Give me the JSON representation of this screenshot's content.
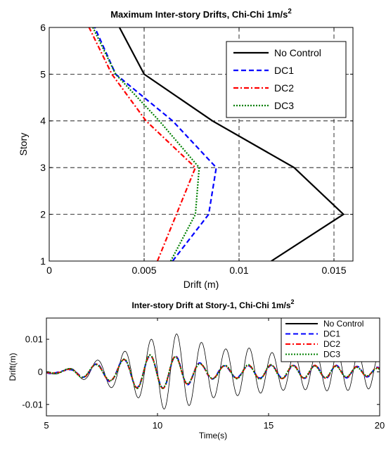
{
  "chart_data": [
    {
      "type": "line",
      "title": "Maximum Inter-story Drifts, Chi-Chi 1m/s",
      "title_sup": "2",
      "xlabel": "Drift (m)",
      "ylabel": "Story",
      "xlim": [
        0,
        0.016
      ],
      "ylim": [
        1,
        6
      ],
      "xticks": [
        0,
        0.005,
        0.01,
        0.015
      ],
      "xtick_labels": [
        "0",
        "0.005",
        "0.01",
        "0.015"
      ],
      "yticks": [
        1,
        2,
        3,
        4,
        5,
        6
      ],
      "ytick_labels": [
        "1",
        "2",
        "3",
        "4",
        "5",
        "6"
      ],
      "grid": true,
      "legend_position": "top-right",
      "series": [
        {
          "name": "No Control",
          "color": "#000000",
          "dash": "solid",
          "points": [
            [
              0.0117,
              1
            ],
            [
              0.0155,
              2
            ],
            [
              0.0129,
              3
            ],
            [
              0.0086,
              4
            ],
            [
              0.005,
              5
            ],
            [
              0.0037,
              6
            ]
          ]
        },
        {
          "name": "DC1",
          "color": "#0000ff",
          "dash": "dashed",
          "points": [
            [
              0.0065,
              1
            ],
            [
              0.0084,
              2
            ],
            [
              0.0088,
              3
            ],
            [
              0.0065,
              4
            ],
            [
              0.0035,
              5
            ],
            [
              0.0024,
              6
            ]
          ]
        },
        {
          "name": "DC2",
          "color": "#ff0000",
          "dash": "dashdot",
          "points": [
            [
              0.0057,
              1
            ],
            [
              0.0067,
              2
            ],
            [
              0.0077,
              3
            ],
            [
              0.0051,
              4
            ],
            [
              0.0033,
              5
            ],
            [
              0.0021,
              6
            ]
          ]
        },
        {
          "name": "DC3",
          "color": "#008000",
          "dash": "dotted",
          "points": [
            [
              0.0064,
              1
            ],
            [
              0.0077,
              2
            ],
            [
              0.0079,
              3
            ],
            [
              0.0058,
              4
            ],
            [
              0.0035,
              5
            ],
            [
              0.0023,
              6
            ]
          ]
        }
      ]
    },
    {
      "type": "line",
      "title": "Inter-story Drift at Story-1, Chi-Chi 1m/s",
      "title_sup": "2",
      "xlabel": "Time(s)",
      "ylabel": "Drift(m)",
      "xlim": [
        5,
        20
      ],
      "ylim": [
        -0.0135,
        0.0165
      ],
      "xticks": [
        5,
        10,
        15,
        20
      ],
      "xtick_labels": [
        "5",
        "10",
        "15",
        "20"
      ],
      "yticks": [
        0.01,
        0,
        -0.01
      ],
      "ytick_labels": [
        "0.01",
        "0",
        "-0.01"
      ],
      "grid": false,
      "legend_position": "top-right",
      "series": [
        {
          "name": "No Control",
          "color": "#000000",
          "dash": "solid",
          "width": 0.8,
          "envelope": [
            [
              5,
              0.0005
            ],
            [
              6,
              0.001
            ],
            [
              7,
              0.003
            ],
            [
              8,
              0.005
            ],
            [
              9,
              0.0075
            ],
            [
              10,
              0.011
            ],
            [
              10.7,
              0.012
            ],
            [
              12,
              0.009
            ],
            [
              13,
              0.007
            ],
            [
              14,
              0.0075
            ],
            [
              15,
              0.006
            ],
            [
              16,
              0.0055
            ],
            [
              17,
              0.0055
            ],
            [
              18,
              0.006
            ],
            [
              19,
              0.0055
            ],
            [
              20,
              0.005
            ]
          ]
        },
        {
          "name": "DC1",
          "color": "#0000ff",
          "dash": "dashed",
          "width": 2,
          "envelope": [
            [
              5,
              0.0004
            ],
            [
              6,
              0.0008
            ],
            [
              7,
              0.002
            ],
            [
              8,
              0.003
            ],
            [
              9,
              0.005
            ],
            [
              10,
              0.005
            ],
            [
              11,
              0.0045
            ],
            [
              12,
              0.0025
            ],
            [
              13,
              0.002
            ],
            [
              14,
              0.002
            ],
            [
              15,
              0.002
            ],
            [
              16,
              0.0018
            ],
            [
              17,
              0.0018
            ],
            [
              18,
              0.0018
            ],
            [
              19,
              0.0015
            ],
            [
              20,
              0.0012
            ]
          ]
        },
        {
          "name": "DC2",
          "color": "#ff0000",
          "dash": "dashdot",
          "width": 2,
          "envelope": [
            [
              5,
              0.0004
            ],
            [
              6,
              0.0008
            ],
            [
              7,
              0.002
            ],
            [
              8,
              0.003
            ],
            [
              9,
              0.005
            ],
            [
              10,
              0.005
            ],
            [
              11,
              0.0045
            ],
            [
              12,
              0.0025
            ],
            [
              13,
              0.002
            ],
            [
              14,
              0.002
            ],
            [
              15,
              0.002
            ],
            [
              16,
              0.0018
            ],
            [
              17,
              0.0018
            ],
            [
              18,
              0.0018
            ],
            [
              19,
              0.0015
            ],
            [
              20,
              0.0012
            ]
          ]
        },
        {
          "name": "DC3",
          "color": "#008000",
          "dash": "dotted",
          "width": 2,
          "envelope": [
            [
              5,
              0.0004
            ],
            [
              6,
              0.0008
            ],
            [
              7,
              0.002
            ],
            [
              8,
              0.003
            ],
            [
              9,
              0.005
            ],
            [
              10,
              0.005
            ],
            [
              11,
              0.0045
            ],
            [
              12,
              0.0025
            ],
            [
              13,
              0.002
            ],
            [
              14,
              0.002
            ],
            [
              15,
              0.002
            ],
            [
              16,
              0.0018
            ],
            [
              17,
              0.0018
            ],
            [
              18,
              0.0018
            ],
            [
              19,
              0.0015
            ],
            [
              20,
              0.0012
            ]
          ]
        }
      ]
    }
  ]
}
